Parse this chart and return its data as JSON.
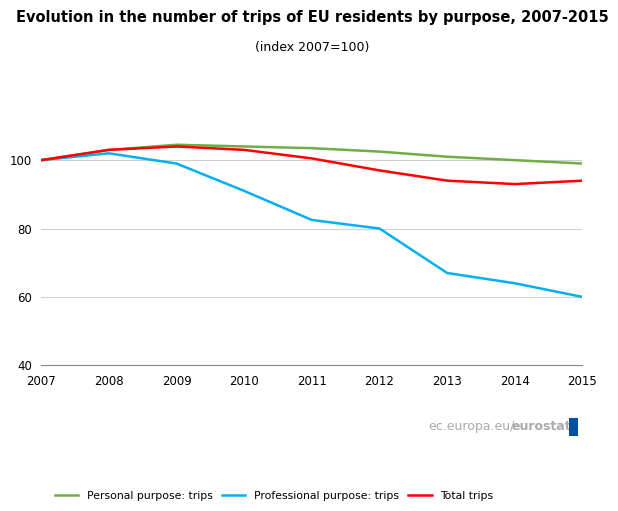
{
  "title": "Evolution in the number of trips of EU residents by purpose, 2007-2015",
  "subtitle": "(index 2007=100)",
  "years": [
    2007,
    2008,
    2009,
    2010,
    2011,
    2012,
    2013,
    2014,
    2015
  ],
  "personal": [
    100,
    103.0,
    104.5,
    104.0,
    103.5,
    102.5,
    101.0,
    100.0,
    99.0
  ],
  "professional": [
    100,
    102.0,
    99.0,
    91.0,
    82.5,
    80.0,
    67.0,
    64.0,
    60.0
  ],
  "total": [
    100,
    103.0,
    104.0,
    103.0,
    100.5,
    97.0,
    94.0,
    93.0,
    94.0
  ],
  "personal_color": "#70ad47",
  "professional_color": "#00b0f0",
  "total_color": "#ff0000",
  "ylim": [
    40,
    115
  ],
  "yticks": [
    40,
    60,
    80,
    100
  ],
  "background_color": "#ffffff",
  "grid_color": "#d0d0d0"
}
